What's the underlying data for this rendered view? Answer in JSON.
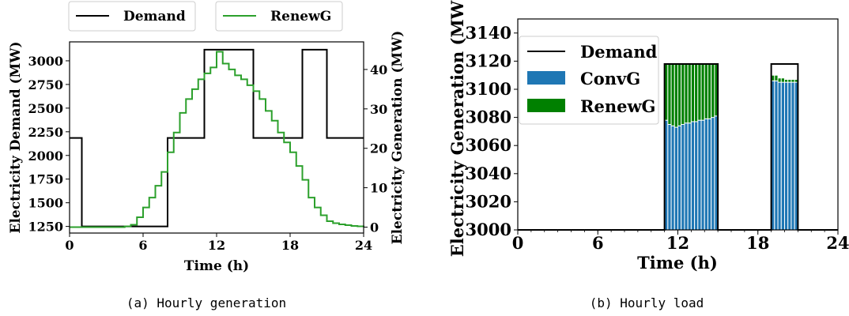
{
  "chart_data": [
    {
      "type": "line",
      "caption": "(a) Hourly generation",
      "xlabel": "Time (h)",
      "ylabel": "Electricity Demand (MW)",
      "y2label": "Electricity Generation (MW)",
      "xlim": [
        0,
        24
      ],
      "ylim": [
        1180,
        3200
      ],
      "y2lim": [
        -1.5,
        47
      ],
      "xticks": [
        0,
        6,
        12,
        18,
        24
      ],
      "yticks": [
        1250,
        1500,
        1750,
        2000,
        2250,
        2500,
        2750,
        3000
      ],
      "y2ticks": [
        0,
        10,
        20,
        30,
        40
      ],
      "grid": false,
      "legend_position": "top-outside",
      "series": [
        {
          "name": "Demand",
          "axis": "left",
          "color": "#000000",
          "step": true,
          "x": [
            0,
            1,
            2,
            3,
            4,
            5,
            6,
            7,
            8,
            9,
            10,
            11,
            12,
            13,
            14,
            15,
            16,
            17,
            18,
            19,
            20,
            21,
            22,
            23,
            24
          ],
          "y": [
            2185,
            1250,
            1250,
            1250,
            1250,
            1250,
            1250,
            1250,
            2185,
            2185,
            2185,
            3118,
            3118,
            3118,
            3118,
            2185,
            2185,
            2185,
            2185,
            3118,
            3118,
            2185,
            2185,
            2185,
            2185
          ]
        },
        {
          "name": "RenewG",
          "axis": "right",
          "color": "#2ca02c",
          "step": true,
          "x": [
            0,
            0.5,
            1,
            1.5,
            2,
            2.5,
            3,
            3.5,
            4,
            4.5,
            5,
            5.5,
            6,
            6.5,
            7,
            7.5,
            8,
            8.5,
            9,
            9.5,
            10,
            10.5,
            11,
            11.5,
            12,
            12.5,
            13,
            13.5,
            14,
            14.5,
            15,
            15.5,
            16,
            16.5,
            17,
            17.5,
            18,
            18.5,
            19,
            19.5,
            20,
            20.5,
            21,
            21.5,
            22,
            22.5,
            23,
            23.5,
            24
          ],
          "y": [
            0,
            0,
            0,
            0,
            0,
            0,
            0,
            0,
            0,
            0.2,
            0.6,
            2.5,
            5,
            7.5,
            10.5,
            14,
            19,
            24,
            29,
            32.5,
            35,
            37.5,
            39,
            40.5,
            44.5,
            41.5,
            40,
            38.5,
            37.5,
            36,
            34.5,
            32.5,
            29.5,
            27,
            24,
            21.5,
            19,
            15.5,
            12,
            7.5,
            5,
            3,
            1.5,
            1,
            0.7,
            0.5,
            0.3,
            0.2,
            0.1
          ]
        }
      ]
    },
    {
      "type": "bar",
      "caption": "(b) Hourly load",
      "stacked": true,
      "xlabel": "Time (h)",
      "ylabel": "Electricity Generation (MW)",
      "xlim": [
        0,
        24
      ],
      "ylim": [
        3000,
        3150
      ],
      "xticks": [
        0,
        6,
        12,
        18,
        24
      ],
      "yticks": [
        3000,
        3020,
        3040,
        3060,
        3080,
        3100,
        3120,
        3140
      ],
      "grid": false,
      "legend_position": "upper-left",
      "bar_x": [
        11.125,
        11.375,
        11.625,
        11.875,
        12.125,
        12.375,
        12.625,
        12.875,
        13.125,
        13.375,
        13.625,
        13.875,
        14.125,
        14.375,
        14.625,
        14.875,
        19.125,
        19.375,
        19.625,
        19.875,
        20.125,
        20.375,
        20.625,
        20.875
      ],
      "bar_width": 0.25,
      "series": [
        {
          "name": "ConvG",
          "color": "#1f77b4",
          "values": [
            3078,
            3075,
            3074,
            3073,
            3074,
            3075,
            3076,
            3076,
            3077,
            3077,
            3078,
            3078,
            3079,
            3079,
            3080,
            3081,
            3106,
            3106,
            3105,
            3105,
            3105,
            3105,
            3105,
            3105
          ]
        },
        {
          "name": "RenewG",
          "color": "#008000",
          "top_values": [
            3118,
            3118,
            3118,
            3118,
            3118,
            3118,
            3118,
            3118,
            3118,
            3118,
            3118,
            3118,
            3118,
            3118,
            3118,
            3118,
            3110,
            3110,
            3108,
            3108,
            3107,
            3107,
            3107,
            3107
          ]
        },
        {
          "name": "Demand",
          "color": "#000000",
          "step": true,
          "x": [
            0,
            11,
            11,
            15,
            15,
            19,
            19,
            21,
            21,
            24
          ],
          "y": [
            3000,
            3000,
            3118,
            3118,
            3000,
            3000,
            3118,
            3118,
            3000,
            3000
          ]
        }
      ]
    }
  ]
}
